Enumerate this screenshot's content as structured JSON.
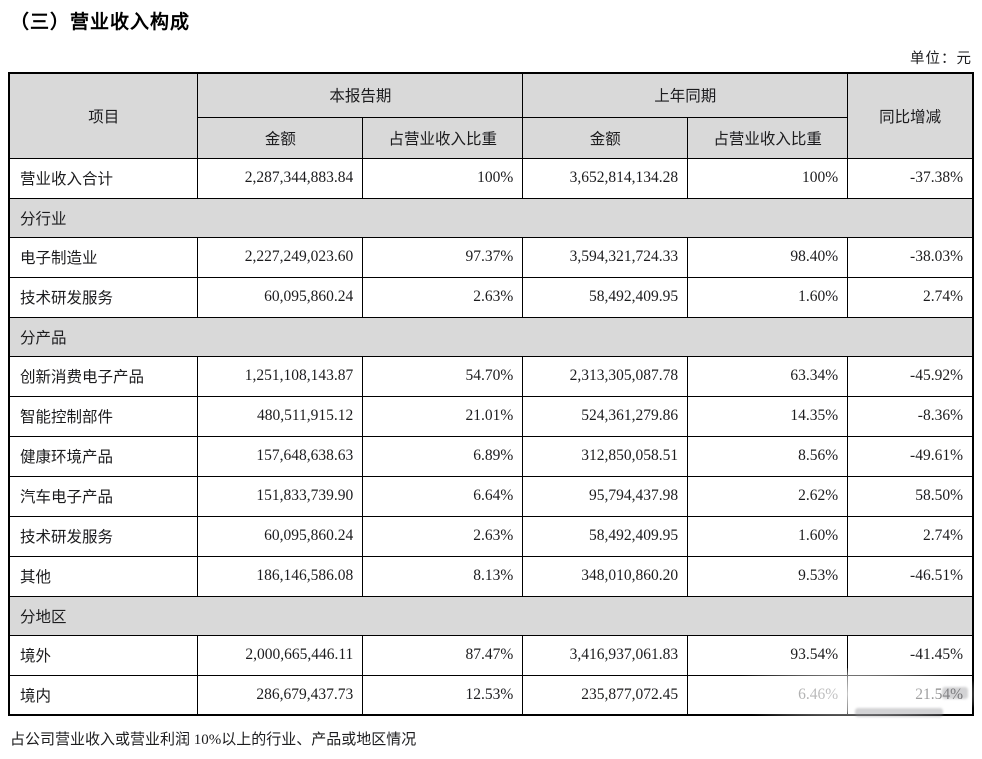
{
  "page": {
    "title": "（三）营业收入构成",
    "unit_label": "单位：元",
    "footer_note": "占公司营业收入或营业利润 10%以上的行业、产品或地区情况"
  },
  "table": {
    "headers": {
      "item": "项目",
      "current_period": "本报告期",
      "prior_period": "上年同期",
      "amount": "金额",
      "proportion": "占营业收入比重",
      "yoy_change": "同比增减"
    },
    "rows": [
      {
        "type": "data",
        "label": "营业收入合计",
        "cur_amount": "2,287,344,883.84",
        "cur_pct": "100%",
        "prior_amount": "3,652,814,134.28",
        "prior_pct": "100%",
        "yoy": "-37.38%"
      },
      {
        "type": "section",
        "label": "分行业"
      },
      {
        "type": "data",
        "label": "电子制造业",
        "cur_amount": "2,227,249,023.60",
        "cur_pct": "97.37%",
        "prior_amount": "3,594,321,724.33",
        "prior_pct": "98.40%",
        "yoy": "-38.03%"
      },
      {
        "type": "data",
        "label": "技术研发服务",
        "cur_amount": "60,095,860.24",
        "cur_pct": "2.63%",
        "prior_amount": "58,492,409.95",
        "prior_pct": "1.60%",
        "yoy": "2.74%"
      },
      {
        "type": "section",
        "label": "分产品"
      },
      {
        "type": "data",
        "label": "创新消费电子产品",
        "cur_amount": "1,251,108,143.87",
        "cur_pct": "54.70%",
        "prior_amount": "2,313,305,087.78",
        "prior_pct": "63.34%",
        "yoy": "-45.92%"
      },
      {
        "type": "data",
        "label": "智能控制部件",
        "cur_amount": "480,511,915.12",
        "cur_pct": "21.01%",
        "prior_amount": "524,361,279.86",
        "prior_pct": "14.35%",
        "yoy": "-8.36%"
      },
      {
        "type": "data",
        "label": "健康环境产品",
        "cur_amount": "157,648,638.63",
        "cur_pct": "6.89%",
        "prior_amount": "312,850,058.51",
        "prior_pct": "8.56%",
        "yoy": "-49.61%"
      },
      {
        "type": "data",
        "label": "汽车电子产品",
        "cur_amount": "151,833,739.90",
        "cur_pct": "6.64%",
        "prior_amount": "95,794,437.98",
        "prior_pct": "2.62%",
        "yoy": "58.50%"
      },
      {
        "type": "data",
        "label": "技术研发服务",
        "cur_amount": "60,095,860.24",
        "cur_pct": "2.63%",
        "prior_amount": "58,492,409.95",
        "prior_pct": "1.60%",
        "yoy": "2.74%"
      },
      {
        "type": "data",
        "label": "其他",
        "cur_amount": "186,146,586.08",
        "cur_pct": "8.13%",
        "prior_amount": "348,010,860.20",
        "prior_pct": "9.53%",
        "yoy": "-46.51%"
      },
      {
        "type": "section",
        "label": "分地区"
      },
      {
        "type": "data",
        "label": "境外",
        "cur_amount": "2,000,665,446.11",
        "cur_pct": "87.47%",
        "prior_amount": "3,416,937,061.83",
        "prior_pct": "93.54%",
        "yoy": "-41.45%"
      },
      {
        "type": "data",
        "label": "境内",
        "cur_amount": "286,679,437.73",
        "cur_pct": "12.53%",
        "prior_amount": "235,877,072.45",
        "prior_pct": "6.46%",
        "yoy": "21.54%"
      }
    ]
  },
  "watermark": {
    "logo_orange": "#f2a55e",
    "logo_blue": "#66819f"
  }
}
